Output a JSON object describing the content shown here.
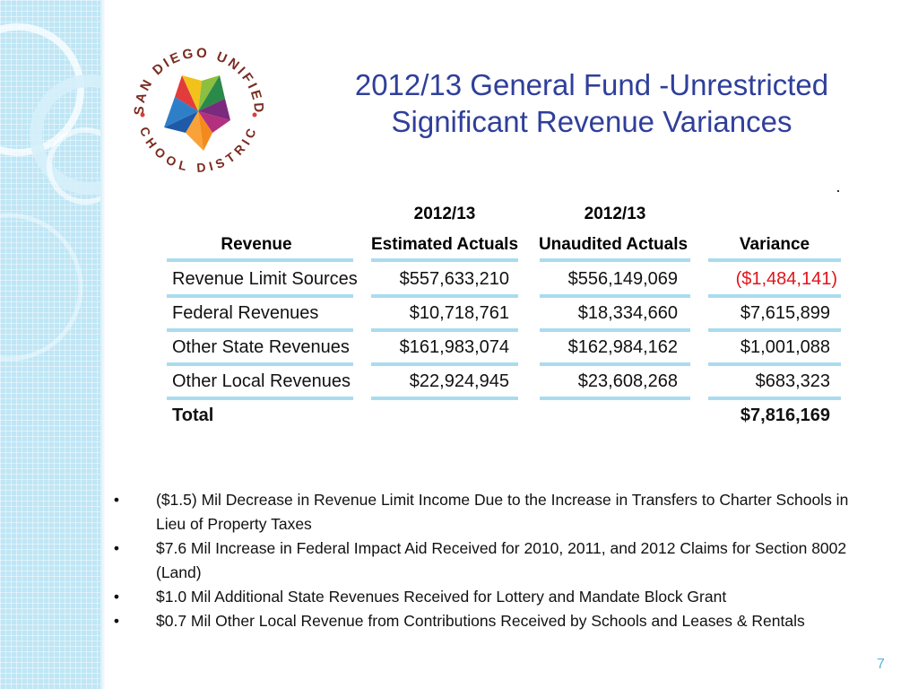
{
  "logo": {
    "text_top": "SAN DIEGO UNIFIED",
    "text_bottom": "SCHOOL DISTRICT",
    "colors": [
      "#e23b3b",
      "#f48a1c",
      "#8cbf3f",
      "#2a8a4a",
      "#1e5aa8",
      "#7a2b7e",
      "#f2c21b"
    ]
  },
  "title": {
    "line1": "2012/13 General Fund -Unrestricted",
    "line2": "Significant Revenue Variances"
  },
  "table": {
    "headers": {
      "revenue": "Revenue",
      "est_year": "2012/13",
      "est_label": "Estimated Actuals",
      "unaud_year": "2012/13",
      "unaud_label": "Unaudited Actuals",
      "variance": "Variance"
    },
    "rows": [
      {
        "label": "Revenue Limit Sources",
        "estimated": "$557,633,210",
        "unaudited": "$556,149,069",
        "variance": "($1,484,141)",
        "negative": true
      },
      {
        "label": "Federal Revenues",
        "estimated": "$10,718,761",
        "unaudited": "$18,334,660",
        "variance": "$7,615,899",
        "negative": false
      },
      {
        "label": "Other State Revenues",
        "estimated": "$161,983,074",
        "unaudited": "$162,984,162",
        "variance": "$1,001,088",
        "negative": false
      },
      {
        "label": "Other Local Revenues",
        "estimated": "$22,924,945",
        "unaudited": "$23,608,268",
        "variance": "$683,323",
        "negative": false
      }
    ],
    "total": {
      "label": "Total",
      "variance": "$7,816,169"
    }
  },
  "bullets": [
    "($1.5) Mil Decrease in Revenue Limit Income Due to the Increase in Transfers to Charter Schools in Lieu of Property Taxes",
    "$7.6 Mil Increase in Federal Impact Aid Received for 2010, 2011, and 2012 Claims for Section 8002 (Land)",
    "$1.0 Mil Additional State Revenues Received for Lottery and Mandate Block Grant",
    "$0.7 Mil Other Local Revenue  from Contributions Received by Schools and Leases & Rentals"
  ],
  "bullet_symbol": "•",
  "page_number": "7",
  "colors": {
    "title": "#2f3f9a",
    "negative": "#e0141b",
    "rule": "#a9dcef",
    "strip": "#bfe6f5",
    "page_number": "#5bb3d8"
  }
}
